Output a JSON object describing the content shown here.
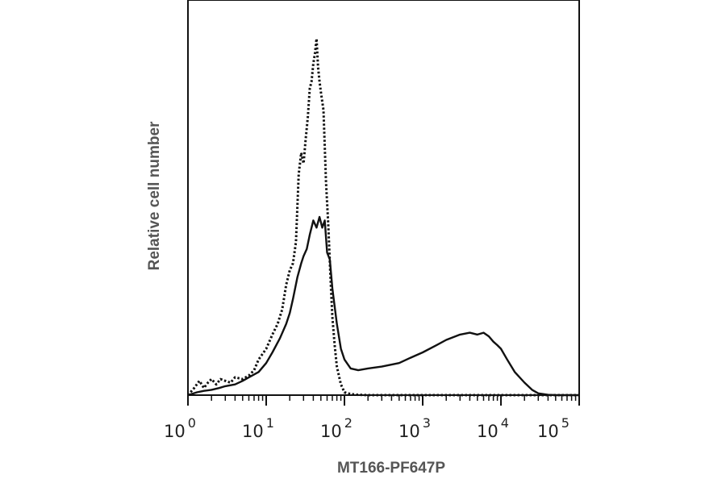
{
  "chart_data": {
    "type": "line",
    "title": "",
    "xlabel": "MT166-PF647P",
    "ylabel": "Relative cell number",
    "x_scale": "log",
    "xlim": [
      1,
      100000
    ],
    "ylim": [
      0,
      1
    ],
    "grid": false,
    "legend": "none",
    "x_ticks": [
      {
        "base": "10",
        "exp": "0",
        "value": 1
      },
      {
        "base": "10",
        "exp": "1",
        "value": 10
      },
      {
        "base": "10",
        "exp": "2",
        "value": 100
      },
      {
        "base": "10",
        "exp": "3",
        "value": 1000
      },
      {
        "base": "10",
        "exp": "4",
        "value": 10000
      },
      {
        "base": "10",
        "exp": "5",
        "value": 100000
      }
    ],
    "series": [
      {
        "style": "solid",
        "color": "#111111",
        "x": [
          1,
          1.3,
          1.6,
          2,
          2.5,
          3,
          4,
          5,
          6,
          8,
          10,
          12,
          15,
          18,
          20,
          22,
          25,
          28,
          30,
          33,
          36,
          40,
          44,
          48,
          52,
          56,
          60,
          65,
          70,
          80,
          90,
          100,
          120,
          150,
          200,
          300,
          500,
          700,
          1000,
          1500,
          2000,
          3000,
          4000,
          5000,
          6000,
          7000,
          8000,
          9000,
          10000,
          12000,
          15000,
          20000,
          25000,
          30000,
          40000,
          50000,
          100000
        ],
        "y": [
          0.0,
          0.008,
          0.012,
          0.015,
          0.02,
          0.025,
          0.03,
          0.04,
          0.05,
          0.065,
          0.09,
          0.12,
          0.16,
          0.2,
          0.23,
          0.27,
          0.33,
          0.37,
          0.39,
          0.41,
          0.45,
          0.49,
          0.47,
          0.5,
          0.47,
          0.49,
          0.4,
          0.38,
          0.3,
          0.2,
          0.13,
          0.1,
          0.075,
          0.07,
          0.075,
          0.08,
          0.09,
          0.105,
          0.12,
          0.14,
          0.155,
          0.17,
          0.175,
          0.17,
          0.175,
          0.165,
          0.15,
          0.14,
          0.13,
          0.1,
          0.065,
          0.035,
          0.015,
          0.005,
          0.001,
          0.0,
          0.0
        ]
      },
      {
        "style": "dotted",
        "color": "#111111",
        "x": [
          1,
          1.2,
          1.4,
          1.6,
          1.8,
          2,
          2.3,
          2.6,
          3,
          3.5,
          4,
          5,
          6,
          7,
          8,
          10,
          12,
          14,
          16,
          18,
          20,
          22,
          24,
          26,
          28,
          30,
          32,
          34,
          36,
          38,
          40,
          42,
          44,
          46,
          48,
          50,
          54,
          58,
          62,
          66,
          70,
          75,
          80,
          90,
          100,
          120,
          150,
          200,
          500,
          100000
        ],
        "y": [
          0.0,
          0.02,
          0.04,
          0.02,
          0.035,
          0.045,
          0.03,
          0.045,
          0.04,
          0.035,
          0.05,
          0.045,
          0.055,
          0.07,
          0.1,
          0.13,
          0.17,
          0.2,
          0.24,
          0.31,
          0.35,
          0.37,
          0.43,
          0.62,
          0.68,
          0.65,
          0.72,
          0.78,
          0.86,
          0.88,
          0.93,
          0.96,
          1.0,
          0.92,
          0.88,
          0.85,
          0.8,
          0.6,
          0.48,
          0.34,
          0.22,
          0.14,
          0.08,
          0.03,
          0.008,
          0.003,
          0.001,
          0.0,
          0.0,
          0.0
        ]
      }
    ]
  }
}
